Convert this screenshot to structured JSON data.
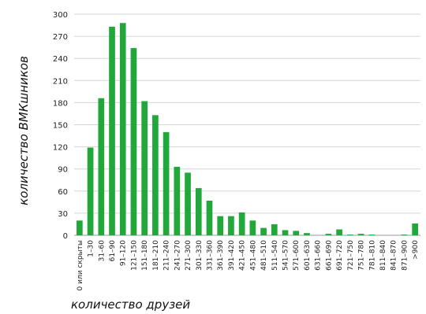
{
  "chart_data": {
    "type": "bar",
    "xlabel": "количество друзей",
    "ylabel": "количество ВМКшников",
    "ylim": [
      0,
      300
    ],
    "yticks": [
      0,
      30,
      60,
      90,
      120,
      150,
      180,
      210,
      240,
      270,
      300
    ],
    "grid": true,
    "bar_color": "#22a83a",
    "categories": [
      "0 или скрыты",
      "1–30",
      "31–60",
      "61–90",
      "91–120",
      "121–150",
      "151–180",
      "181–210",
      "211–240",
      "241–270",
      "271–300",
      "301–330",
      "331–360",
      "361–390",
      "391–420",
      "421–450",
      "451–480",
      "481–510",
      "511–540",
      "541–570",
      "571–600",
      "601–630",
      "631–660",
      "661–690",
      "691–720",
      "721–750",
      "751–780",
      "781–810",
      "811–840",
      "841–870",
      "871–900",
      ">900"
    ],
    "values": [
      20,
      119,
      186,
      283,
      288,
      254,
      182,
      163,
      140,
      93,
      85,
      64,
      47,
      26,
      26,
      31,
      20,
      10,
      15,
      7,
      6,
      3,
      0,
      2,
      8,
      1,
      2,
      1,
      0,
      0,
      1,
      16
    ]
  }
}
